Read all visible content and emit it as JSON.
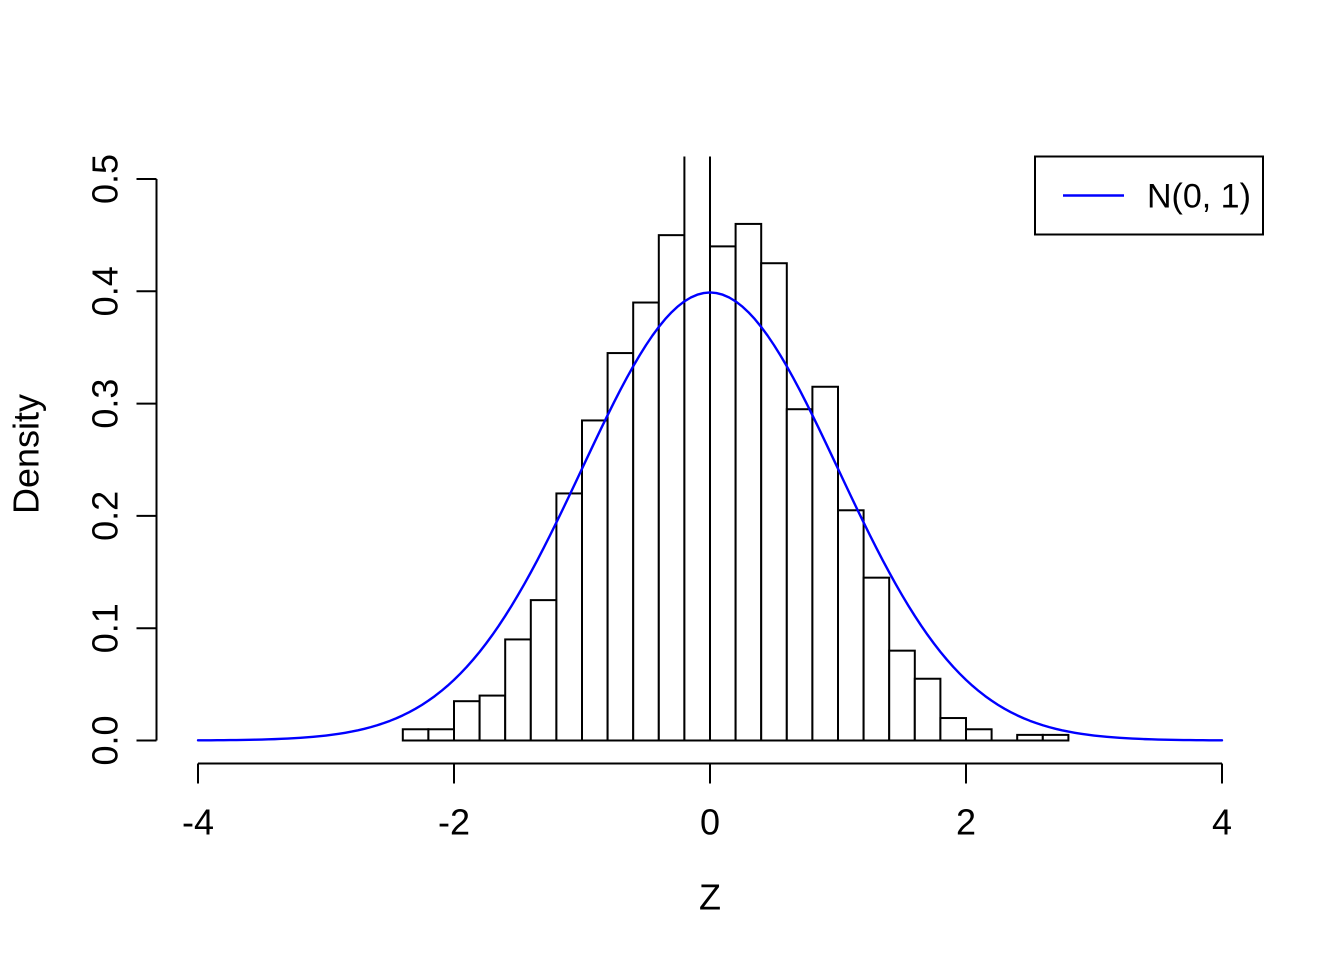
{
  "figure": {
    "background": "#ffffff",
    "text_color": "#000000"
  },
  "chart_data": {
    "type": "histogram",
    "title": "",
    "xlabel": "Z",
    "ylabel": "Density",
    "xlim": [
      -4,
      4
    ],
    "ylim": [
      0,
      0.5
    ],
    "grid": false,
    "x_ticks": [
      -4,
      -2,
      0,
      2,
      4
    ],
    "x_tick_labels": [
      "-4",
      "-2",
      "0",
      "2",
      "4"
    ],
    "y_ticks": [
      0.0,
      0.1,
      0.2,
      0.3,
      0.4,
      0.5
    ],
    "y_tick_labels": [
      "0.0",
      "0.1",
      "0.2",
      "0.3",
      "0.4",
      "0.5"
    ],
    "bin_start": -2.4,
    "bin_width": 0.2,
    "bin_edges": [
      -2.4,
      -2.2,
      -2.0,
      -1.8,
      -1.6,
      -1.4,
      -1.2,
      -1.0,
      -0.8,
      -0.6,
      -0.4,
      -0.2,
      0.0,
      0.2,
      0.4,
      0.6,
      0.8,
      1.0,
      1.2,
      1.4,
      1.6,
      1.8,
      2.0,
      2.2,
      2.4,
      2.6,
      2.8
    ],
    "densities": [
      0.01,
      0.01,
      0.035,
      0.04,
      0.09,
      0.125,
      0.22,
      0.285,
      0.345,
      0.39,
      0.45,
      0.54,
      0.44,
      0.46,
      0.425,
      0.295,
      0.315,
      0.205,
      0.145,
      0.08,
      0.055,
      0.02,
      0.01,
      0.0,
      0.005,
      0.005
    ],
    "bar_fill": "#ffffff",
    "bar_stroke": "#000000",
    "curve": {
      "name": "N(0, 1)",
      "distribution": "normal",
      "mean": 0,
      "sd": 1,
      "x_range": [
        -4,
        4
      ],
      "color": "#0000ff"
    },
    "legend": {
      "position": "topright",
      "entries": [
        {
          "label": "N(0, 1)",
          "color": "#0000ff",
          "type": "line"
        }
      ]
    }
  }
}
